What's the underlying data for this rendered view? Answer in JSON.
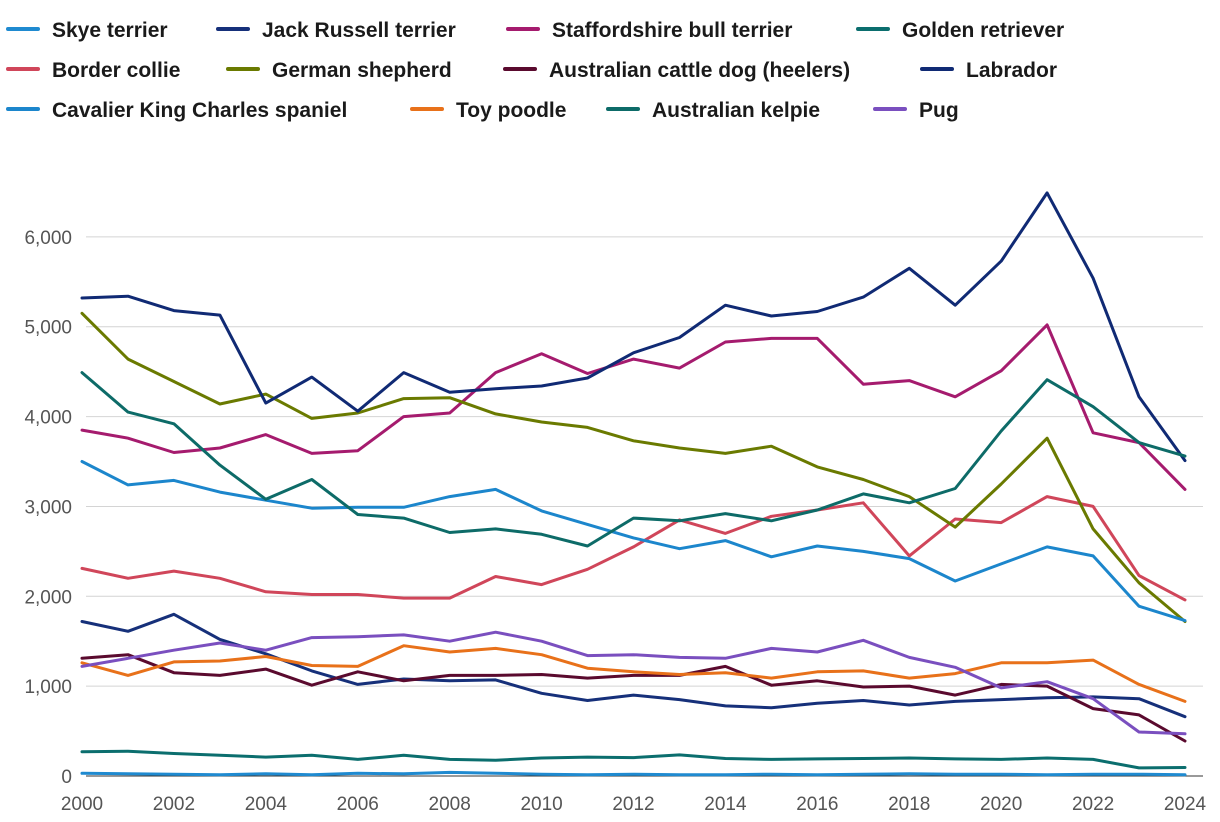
{
  "chart_data": {
    "type": "line",
    "title": "",
    "xlabel": "",
    "ylabel": "",
    "x": [
      2000,
      2001,
      2002,
      2003,
      2004,
      2005,
      2006,
      2007,
      2008,
      2009,
      2010,
      2011,
      2012,
      2013,
      2014,
      2015,
      2016,
      2017,
      2018,
      2019,
      2020,
      2021,
      2022,
      2023,
      2024
    ],
    "xticks": [
      "2000",
      "2002",
      "2004",
      "2006",
      "2008",
      "2010",
      "2012",
      "2014",
      "2016",
      "2018",
      "2020",
      "2022",
      "2024"
    ],
    "ylim": [
      0,
      6800
    ],
    "yticks": [
      0,
      1000,
      2000,
      3000,
      4000,
      5000,
      6000
    ],
    "ytick_labels": [
      "0",
      "1,000",
      "2,000",
      "3,000",
      "4,000",
      "5,000",
      "6,000"
    ],
    "grid": true,
    "legend_position": "top",
    "series": [
      {
        "name": "Skye terrier",
        "color": "#1f8ad0",
        "values": [
          30,
          25,
          20,
          15,
          25,
          15,
          30,
          25,
          40,
          30,
          20,
          15,
          20,
          15,
          15,
          20,
          15,
          20,
          25,
          20,
          20,
          15,
          20,
          20,
          15
        ]
      },
      {
        "name": "Jack Russell terrier",
        "color": "#16307a",
        "values": [
          1720,
          1610,
          1800,
          1520,
          1360,
          1170,
          1020,
          1080,
          1060,
          1070,
          920,
          840,
          900,
          850,
          780,
          760,
          810,
          840,
          790,
          830,
          850,
          870,
          880,
          860,
          660
        ]
      },
      {
        "name": "Staffordshire bull terrier",
        "color": "#a51b6e",
        "values": [
          3850,
          3760,
          3600,
          3650,
          3800,
          3590,
          3620,
          4000,
          4040,
          4490,
          4700,
          4480,
          4640,
          4540,
          4830,
          4870,
          4870,
          4360,
          4400,
          4220,
          4510,
          5020,
          3820,
          3710,
          3190
        ]
      },
      {
        "name": "Golden retriever",
        "color": "#0b6e6e",
        "values": [
          270,
          275,
          250,
          230,
          210,
          230,
          185,
          230,
          185,
          175,
          200,
          210,
          205,
          235,
          195,
          185,
          190,
          195,
          200,
          190,
          185,
          200,
          185,
          90,
          95
        ]
      },
      {
        "name": "Border collie",
        "color": "#d0465a",
        "values": [
          2310,
          2200,
          2280,
          2200,
          2050,
          2020,
          2020,
          1980,
          1980,
          2220,
          2130,
          2300,
          2550,
          2850,
          2700,
          2890,
          2960,
          3040,
          2450,
          2860,
          2820,
          3110,
          3000,
          2230,
          1960
        ]
      },
      {
        "name": "German shepherd",
        "color": "#6a7a00",
        "values": [
          5150,
          4640,
          4390,
          4140,
          4250,
          3980,
          4040,
          4200,
          4210,
          4030,
          3940,
          3880,
          3730,
          3650,
          3590,
          3670,
          3440,
          3300,
          3110,
          2770,
          3250,
          3760,
          2750,
          2150,
          1720
        ]
      },
      {
        "name": "Australian cattle dog (heelers)",
        "color": "#5a0a2e",
        "values": [
          1310,
          1350,
          1150,
          1120,
          1190,
          1010,
          1160,
          1060,
          1120,
          1120,
          1130,
          1090,
          1120,
          1120,
          1220,
          1010,
          1060,
          990,
          1000,
          900,
          1020,
          1000,
          750,
          680,
          390
        ]
      },
      {
        "name": "Labrador",
        "color": "#102a74",
        "values": [
          5320,
          5340,
          5180,
          5130,
          4150,
          4440,
          4060,
          4490,
          4270,
          4310,
          4340,
          4430,
          4710,
          4880,
          5240,
          5120,
          5170,
          5330,
          5650,
          5240,
          5730,
          6490,
          5540,
          4220,
          3510
        ]
      },
      {
        "name": "Cavalier King Charles spaniel",
        "color": "#1c86cc",
        "values": [
          3500,
          3240,
          3290,
          3160,
          3070,
          2980,
          2990,
          2990,
          3110,
          3190,
          2950,
          2800,
          2650,
          2530,
          2620,
          2440,
          2560,
          2500,
          2420,
          2170,
          2360,
          2550,
          2450,
          1890,
          1730
        ]
      },
      {
        "name": "Toy poodle",
        "color": "#e8711a",
        "values": [
          1260,
          1120,
          1270,
          1280,
          1330,
          1230,
          1220,
          1450,
          1380,
          1420,
          1350,
          1200,
          1160,
          1130,
          1150,
          1090,
          1160,
          1170,
          1090,
          1140,
          1260,
          1260,
          1290,
          1020,
          830
        ]
      },
      {
        "name": "Australian kelpie",
        "color": "#0d6b68",
        "values": [
          4490,
          4050,
          3920,
          3460,
          3080,
          3300,
          2910,
          2870,
          2710,
          2750,
          2690,
          2560,
          2870,
          2840,
          2920,
          2840,
          2960,
          3140,
          3040,
          3200,
          3840,
          4410,
          4110,
          3710,
          3560
        ]
      },
      {
        "name": "Pug",
        "color": "#7a4fbf",
        "values": [
          1220,
          1310,
          1400,
          1480,
          1400,
          1540,
          1550,
          1570,
          1500,
          1600,
          1500,
          1340,
          1350,
          1320,
          1310,
          1420,
          1380,
          1510,
          1320,
          1210,
          980,
          1050,
          860,
          490,
          470
        ]
      }
    ]
  }
}
